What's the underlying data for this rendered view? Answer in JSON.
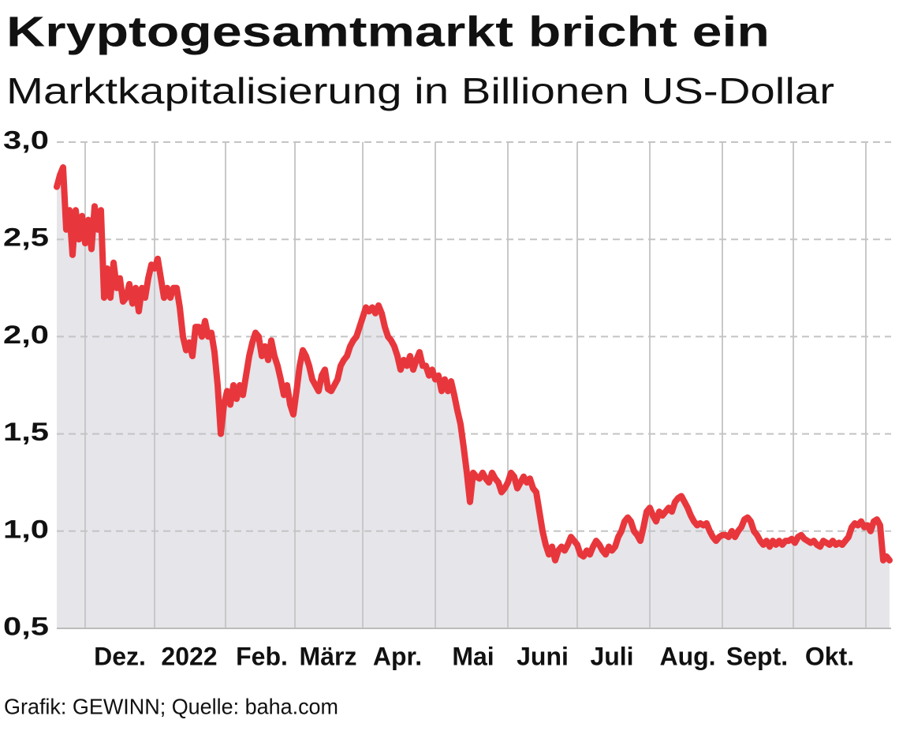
{
  "chart_data": {
    "type": "line",
    "title": "Kryptogesamtmarkt bricht ein",
    "subtitle": "Marktkapitalisierung in Billionen US-Dollar",
    "source": "Grafik: GEWINN; Quelle: baha.com",
    "color": "#e8373c",
    "area_color": "#e5e5ea",
    "grid": true,
    "ylim": [
      0.5,
      3.0
    ],
    "yticks": [
      {
        "value": 0.5,
        "label": "0,5"
      },
      {
        "value": 1.0,
        "label": "1,0"
      },
      {
        "value": 1.5,
        "label": "1,5"
      },
      {
        "value": 2.0,
        "label": "2,0"
      },
      {
        "value": 2.5,
        "label": "2,5"
      },
      {
        "value": 3.0,
        "label": "3,0"
      }
    ],
    "categories": [
      null,
      null,
      null,
      null,
      null,
      null,
      null,
      null,
      null,
      null,
      null,
      null,
      null,
      null,
      null,
      null,
      null,
      null,
      null,
      null,
      "Dez.",
      null,
      null,
      null,
      null,
      null,
      null,
      null,
      null,
      null,
      null,
      null,
      null,
      null,
      null,
      null,
      null,
      null,
      null,
      null,
      null,
      null,
      "2022",
      null,
      null,
      null,
      null,
      null,
      null,
      null,
      null,
      null,
      null,
      null,
      null,
      null,
      null,
      null,
      null,
      null,
      null,
      null,
      null,
      null,
      null,
      "Feb.",
      null,
      null,
      null,
      null,
      null,
      null,
      null,
      null,
      null,
      null,
      null,
      null,
      null,
      null,
      null,
      null,
      null,
      null,
      null,
      null,
      "März",
      null,
      null,
      null,
      null,
      null,
      null,
      null,
      null,
      null,
      null,
      null,
      null,
      null,
      null,
      null,
      null,
      null,
      null,
      null,
      null,
      null,
      "Apr.",
      null,
      null,
      null,
      null,
      null,
      null,
      null,
      null,
      null,
      null,
      null,
      null,
      null,
      null,
      null,
      null,
      null,
      null,
      null,
      null,
      null,
      null,
      null,
      "Mai",
      null,
      null,
      null,
      null,
      null,
      null,
      null,
      null,
      null,
      null,
      null,
      null,
      null,
      null,
      null,
      null,
      null,
      null,
      null,
      null,
      null,
      "Juni",
      null,
      null,
      null,
      null,
      null,
      null,
      null,
      null,
      null,
      null,
      null,
      null,
      null,
      null,
      null,
      null,
      null,
      null,
      null,
      null,
      null,
      "Juli",
      null,
      null,
      null,
      null,
      null,
      null,
      null,
      null,
      null,
      null,
      null,
      null,
      null,
      null,
      null,
      null,
      null,
      null,
      null,
      null,
      null,
      null,
      null,
      "Aug.",
      null,
      null,
      null,
      null,
      null,
      null,
      null,
      null,
      null,
      null,
      null,
      null,
      null,
      null,
      null,
      null,
      null,
      null,
      null,
      null,
      null,
      "Sept.",
      null,
      null,
      null,
      null,
      null,
      null,
      null,
      null,
      null,
      null,
      null,
      null,
      null,
      null,
      null,
      null,
      null,
      null,
      null,
      null,
      null,
      null,
      "Okt.",
      null,
      null,
      null,
      null,
      null,
      null,
      null,
      null,
      null,
      null,
      null,
      null,
      null,
      null,
      null,
      null,
      null,
      null,
      null
    ],
    "values": [
      2.77,
      2.83,
      2.87,
      2.55,
      2.65,
      2.42,
      2.65,
      2.5,
      2.62,
      2.48,
      2.6,
      2.45,
      2.67,
      2.55,
      2.65,
      2.2,
      2.35,
      2.2,
      2.38,
      2.25,
      2.3,
      2.18,
      2.2,
      2.27,
      2.17,
      2.25,
      2.13,
      2.25,
      2.2,
      2.3,
      2.37,
      2.35,
      2.4,
      2.3,
      2.2,
      2.25,
      2.2,
      2.25,
      2.25,
      2.15,
      2.0,
      1.93,
      1.97,
      1.9,
      2.05,
      2.05,
      2.0,
      2.08,
      2.0,
      2.02,
      1.92,
      1.75,
      1.5,
      1.65,
      1.72,
      1.65,
      1.75,
      1.68,
      1.75,
      1.7,
      1.8,
      1.9,
      1.97,
      2.02,
      2.0,
      1.9,
      1.95,
      1.88,
      1.98,
      1.9,
      1.85,
      1.78,
      1.7,
      1.75,
      1.65,
      1.6,
      1.72,
      1.85,
      1.93,
      1.9,
      1.85,
      1.78,
      1.75,
      1.72,
      1.8,
      1.83,
      1.73,
      1.72,
      1.75,
      1.78,
      1.85,
      1.88,
      1.9,
      1.95,
      1.98,
      2.0,
      2.05,
      2.1,
      2.15,
      2.13,
      2.15,
      2.12,
      2.16,
      2.12,
      2.05,
      2.0,
      1.98,
      1.95,
      1.9,
      1.83,
      1.88,
      1.85,
      1.9,
      1.83,
      1.88,
      1.92,
      1.85,
      1.85,
      1.8,
      1.83,
      1.78,
      1.8,
      1.72,
      1.78,
      1.72,
      1.77,
      1.7,
      1.62,
      1.55,
      1.43,
      1.3,
      1.15,
      1.3,
      1.28,
      1.27,
      1.3,
      1.27,
      1.25,
      1.3,
      1.27,
      1.25,
      1.2,
      1.22,
      1.25,
      1.3,
      1.28,
      1.22,
      1.25,
      1.28,
      1.25,
      1.27,
      1.22,
      1.2,
      1.1,
      1.0,
      0.93,
      0.88,
      0.92,
      0.85,
      0.9,
      0.92,
      0.9,
      0.93,
      0.97,
      0.95,
      0.93,
      0.88,
      0.87,
      0.9,
      0.88,
      0.92,
      0.95,
      0.93,
      0.9,
      0.88,
      0.92,
      0.9,
      0.92,
      0.97,
      1.0,
      1.05,
      1.07,
      1.05,
      1.0,
      0.98,
      0.95,
      1.02,
      1.1,
      1.12,
      1.08,
      1.05,
      1.1,
      1.08,
      1.1,
      1.12,
      1.1,
      1.15,
      1.17,
      1.18,
      1.15,
      1.12,
      1.08,
      1.05,
      1.03,
      1.04,
      1.03,
      1.04,
      1.0,
      0.97,
      0.95,
      0.97,
      0.98,
      0.98,
      0.97,
      1.0,
      0.97,
      1.0,
      1.02,
      1.06,
      1.07,
      1.05,
      1.0,
      0.98,
      0.95,
      0.93,
      0.95,
      0.92,
      0.95,
      0.93,
      0.95,
      0.93,
      0.95,
      0.95,
      0.96,
      0.94,
      0.97,
      0.98,
      0.96,
      0.95,
      0.94,
      0.95,
      0.93,
      0.92,
      0.95,
      0.94,
      0.93,
      0.95,
      0.93,
      0.94,
      0.93,
      0.95,
      0.97,
      1.02,
      1.04,
      1.03,
      1.05,
      1.02,
      1.03,
      1.0,
      1.05,
      1.06,
      1.03,
      0.85,
      0.87,
      0.85
    ]
  }
}
